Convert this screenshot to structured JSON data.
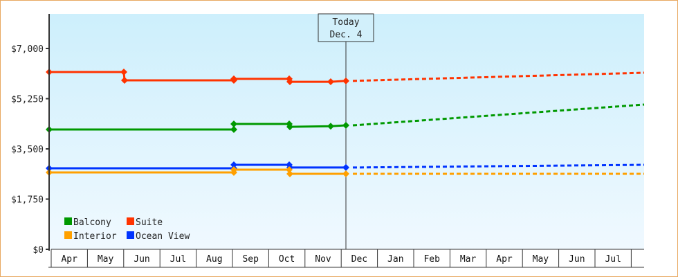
{
  "chart_data": {
    "type": "line",
    "title": "",
    "xlabel": "",
    "ylabel": "",
    "ylim": [
      0,
      7000
    ],
    "yticks": [
      "$0",
      "$1,750",
      "$3,500",
      "$5,250",
      "$7,000"
    ],
    "x_months": [
      "Apr",
      "May",
      "Jun",
      "Jul",
      "Aug",
      "Sep",
      "Oct",
      "Nov",
      "Dec",
      "Jan",
      "Feb",
      "Mar",
      "Apr",
      "May",
      "Jun",
      "Jul",
      ""
    ],
    "annotation": {
      "line1": "Today",
      "line2": "Dec. 4"
    },
    "legend": [
      {
        "name": "Balcony",
        "color": "#009900"
      },
      {
        "name": "Suite",
        "color": "#ff3300"
      },
      {
        "name": "Interior",
        "color": "#ffa000"
      },
      {
        "name": "Ocean View",
        "color": "#0033ff"
      }
    ],
    "series": [
      {
        "name": "Suite",
        "color": "#ff3300",
        "historical": [
          [
            "Apr 1",
            6180
          ],
          [
            "Jun 1",
            6180
          ],
          [
            "Jun 1",
            5890
          ],
          [
            "Sep 1",
            5890
          ],
          [
            "Sep 1",
            5940
          ],
          [
            "Oct 1",
            5940
          ],
          [
            "Oct 1",
            5840
          ],
          [
            "Nov 20",
            5840
          ],
          [
            "Dec 4",
            5870
          ]
        ],
        "forecast_end": 6155
      },
      {
        "name": "Balcony",
        "color": "#009900",
        "historical": [
          [
            "Apr 1",
            4175
          ],
          [
            "Sep 1",
            4175
          ],
          [
            "Sep 1",
            4370
          ],
          [
            "Oct 1",
            4370
          ],
          [
            "Oct 1",
            4270
          ],
          [
            "Nov 20",
            4290
          ],
          [
            "Dec 4",
            4320
          ]
        ],
        "forecast_end": 5045
      },
      {
        "name": "Ocean View",
        "color": "#0033ff",
        "historical": [
          [
            "Apr 1",
            2825
          ],
          [
            "Sep 1",
            2825
          ],
          [
            "Sep 1",
            2945
          ],
          [
            "Oct 1",
            2945
          ],
          [
            "Oct 1",
            2850
          ],
          [
            "Dec 4",
            2850
          ]
        ],
        "forecast_end": 2945
      },
      {
        "name": "Interior",
        "color": "#ffa000",
        "historical": [
          [
            "Apr 1",
            2680
          ],
          [
            "Sep 1",
            2680
          ],
          [
            "Sep 1",
            2775
          ],
          [
            "Oct 1",
            2775
          ],
          [
            "Oct 1",
            2630
          ],
          [
            "Dec 4",
            2630
          ]
        ],
        "forecast_end": 2630
      }
    ]
  }
}
